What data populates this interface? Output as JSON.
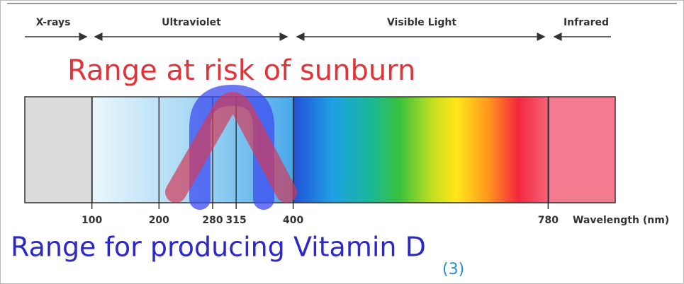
{
  "bands": [
    {
      "label": "X-rays"
    },
    {
      "label": "Ultraviolet"
    },
    {
      "label": "Visible Light"
    },
    {
      "label": "Infrared"
    }
  ],
  "sunburn_label": "Range at risk of sunburn",
  "vitamin_label": "Range for producing Vitamin D",
  "footnote": "(3)",
  "axis": {
    "label": "Wavelength (nm)",
    "xlim": [
      0,
      880
    ],
    "ticks": [
      100,
      200,
      280,
      315,
      400,
      780
    ]
  }
}
